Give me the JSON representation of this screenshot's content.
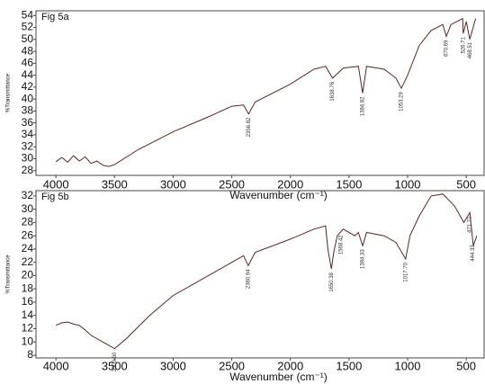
{
  "chart_data": [
    {
      "type": "line",
      "title": "Fig 5a",
      "x_label": "Wavenumber (cm⁻¹)",
      "y_label": "%Transmittance",
      "xlim": [
        4170,
        340
      ],
      "xticks": [
        4000,
        3500,
        3000,
        2500,
        2000,
        1500,
        1000,
        500
      ],
      "ylim": [
        27.2,
        54.8
      ],
      "yticks": [
        28,
        30,
        32,
        34,
        36,
        38,
        40,
        42,
        44,
        46,
        48,
        50,
        52,
        54
      ],
      "series": [
        {
          "name": "Fig 5a",
          "color": "#5a2626",
          "x": [
            4000,
            3950,
            3900,
            3850,
            3800,
            3750,
            3700,
            3650,
            3600,
            3550,
            3500,
            3300,
            3000,
            2700,
            2500,
            2400,
            2356,
            2300,
            2000,
            1800,
            1700,
            1640,
            1550,
            1420,
            1384,
            1350,
            1200,
            1100,
            1053,
            1000,
            900,
            800,
            700,
            670,
            630,
            530,
            526,
            500,
            470,
            420
          ],
          "values": [
            29.5,
            30.2,
            29.4,
            30.5,
            29.6,
            30.3,
            29.2,
            29.6,
            28.9,
            28.7,
            29,
            31.5,
            34.5,
            37,
            38.8,
            39,
            37.5,
            39.5,
            42.5,
            45,
            45.5,
            43.5,
            45.2,
            45.5,
            41,
            45.5,
            45,
            43.5,
            41.8,
            44,
            49,
            51.5,
            52.5,
            50.5,
            52.5,
            53.5,
            51,
            53,
            50,
            53.5
          ]
        }
      ],
      "annotations": [
        {
          "text": "2356.82",
          "x": 2356
        },
        {
          "text": "1638.76",
          "x": 1640
        },
        {
          "text": "1384.82",
          "x": 1384
        },
        {
          "text": "1053.29",
          "x": 1053
        },
        {
          "text": "670.69",
          "x": 670
        },
        {
          "text": "526.71",
          "x": 526
        },
        {
          "text": "468.51",
          "x": 468
        }
      ]
    },
    {
      "type": "line",
      "title": "Fig 5b",
      "x_label": "Wavenumber (cm⁻¹)",
      "y_label": "%Transmittance",
      "xlim": [
        4170,
        340
      ],
      "xticks": [
        4000,
        3500,
        3000,
        2500,
        2000,
        1500,
        1000,
        500
      ],
      "ylim": [
        7.6,
        32.8
      ],
      "yticks": [
        8,
        10,
        12,
        14,
        16,
        18,
        20,
        22,
        24,
        26,
        28,
        30,
        32
      ],
      "series": [
        {
          "name": "Fig 5b",
          "color": "#5a2626",
          "x": [
            4000,
            3950,
            3900,
            3850,
            3800,
            3750,
            3700,
            3600,
            3500,
            3400,
            3200,
            3000,
            2800,
            2500,
            2400,
            2360,
            2300,
            2000,
            1800,
            1700,
            1680,
            1650,
            1630,
            1600,
            1550,
            1450,
            1420,
            1384,
            1350,
            1200,
            1100,
            1017,
            980,
            900,
            800,
            700,
            600,
            520,
            470,
            440,
            410
          ],
          "values": [
            12.5,
            12.9,
            13,
            12.7,
            12.5,
            11.8,
            11,
            10,
            9,
            10.5,
            14,
            17,
            19,
            22,
            23,
            21.5,
            23.5,
            25.5,
            27,
            27.5,
            24,
            21,
            23.5,
            26,
            27,
            26,
            26.5,
            24.5,
            26.5,
            26,
            25,
            22.5,
            26,
            29,
            32,
            32.3,
            30.5,
            28,
            29.5,
            24.5,
            26
          ]
        }
      ],
      "annotations": [
        {
          "text": "3500.60",
          "x": 3500
        },
        {
          "text": "2360.94",
          "x": 2360
        },
        {
          "text": "1650.38",
          "x": 1650
        },
        {
          "text": "1568.42",
          "x": 1568
        },
        {
          "text": "1384.33",
          "x": 1384
        },
        {
          "text": "1017.70",
          "x": 1017
        },
        {
          "text": "471.71",
          "x": 471
        },
        {
          "text": "444.33",
          "x": 444
        }
      ]
    }
  ]
}
